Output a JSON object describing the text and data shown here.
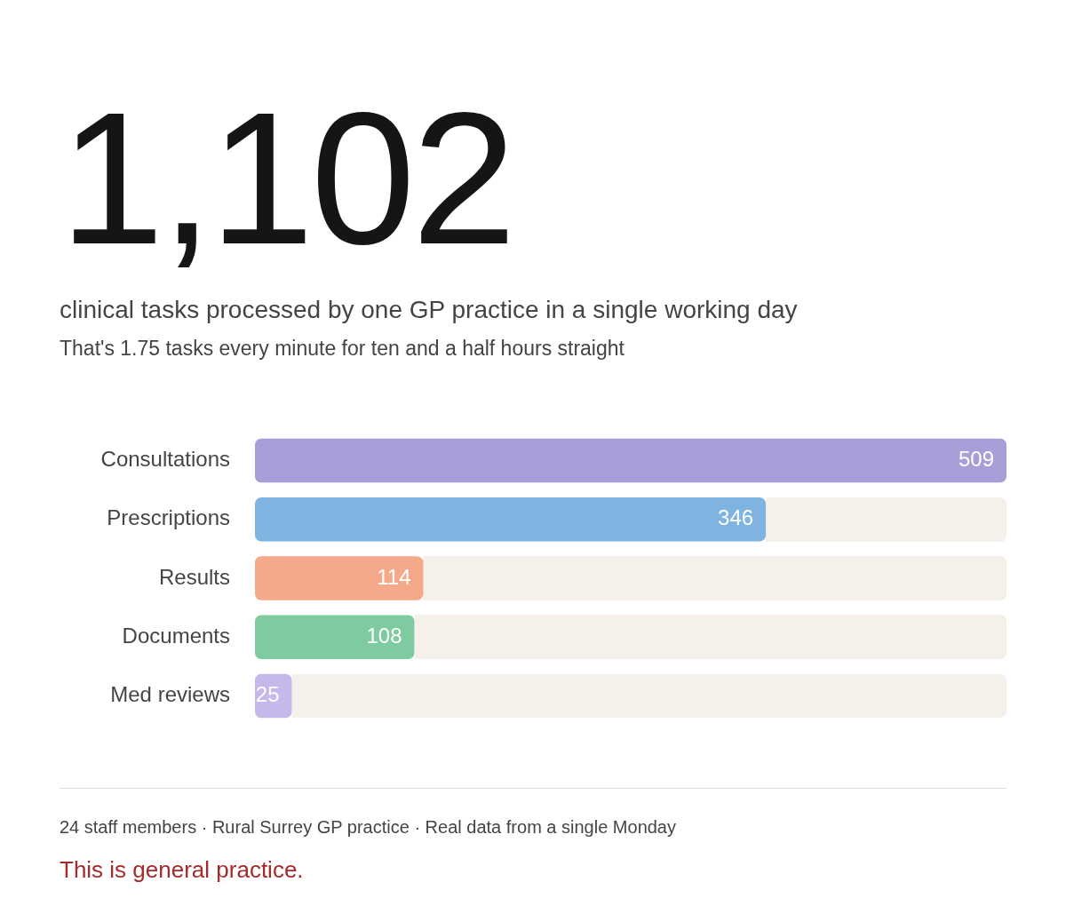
{
  "chart_data": {
    "type": "bar",
    "orientation": "horizontal",
    "title": "1,102",
    "subtitle": "clinical tasks processed by one GP practice in a single working day",
    "categories": [
      "Consultations",
      "Prescriptions",
      "Results",
      "Documents",
      "Med reviews"
    ],
    "values": [
      509,
      346,
      114,
      108,
      25
    ],
    "colors": [
      "#a99fd8",
      "#7fb3e0",
      "#f4a98a",
      "#7ecba0",
      "#c5b8ea"
    ],
    "xlim": [
      0,
      509
    ],
    "data_labels": true,
    "legend": false,
    "annotations": [
      "That's 1.75 tasks every minute for ten and a half hours straight",
      "24 staff members · Rural Surrey GP practice · Real data from a single Monday",
      "This is general practice."
    ]
  }
}
